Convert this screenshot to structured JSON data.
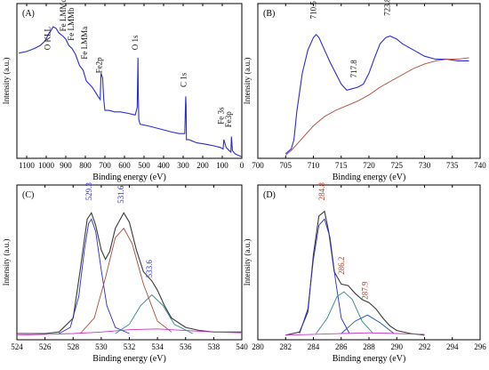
{
  "chart_data": [
    {
      "type": "line",
      "panel_label": "(A)",
      "xlabel": "Binding energy (eV)",
      "ylabel": "Intensity (a.u.)",
      "xlim": [
        1150,
        0
      ],
      "x_reversed": true,
      "xticks": [
        1100,
        1000,
        900,
        800,
        700,
        600,
        500,
        400,
        300,
        200,
        100,
        0
      ],
      "ylim": [
        0,
        100
      ],
      "y_tick_labels_shown": false,
      "series": [
        {
          "color": "#2b2bd6",
          "x": [
            1140,
            1100,
            1060,
            1030,
            1005,
            990,
            978,
            965,
            950,
            935,
            915,
            900,
            885,
            868,
            850,
            830,
            812,
            795,
            780,
            765,
            750,
            735,
            724,
            720,
            712,
            706,
            700,
            680,
            650,
            620,
            580,
            545,
            535,
            531,
            529,
            527,
            520,
            480,
            420,
            360,
            320,
            292,
            287,
            285,
            283,
            270,
            230,
            180,
            140,
            110,
            96,
            92,
            80,
            65,
            56,
            53,
            48,
            35,
            20,
            0
          ],
          "y": [
            68,
            69,
            71,
            73,
            76,
            80,
            82,
            85,
            84,
            81,
            79,
            77,
            73,
            71,
            67,
            60,
            57,
            50,
            48,
            46,
            43,
            40,
            38,
            55,
            52,
            38,
            31,
            31,
            30,
            30,
            29,
            28,
            33,
            65,
            40,
            25,
            22,
            21,
            19,
            17,
            16,
            16,
            40,
            34,
            12,
            12,
            10,
            9,
            8,
            7,
            6,
            12,
            7,
            5,
            4,
            14,
            5,
            3,
            2,
            1
          ]
        }
      ],
      "annotations": [
        {
          "text": "O KLL",
          "x": 980
        },
        {
          "text": "Fe LMMc",
          "x": 900
        },
        {
          "text": "Fe LMMb",
          "x": 860
        },
        {
          "text": "Fe LMMa",
          "x": 790
        },
        {
          "text": "Fe2p",
          "x": 715
        },
        {
          "text": "O 1s",
          "x": 531
        },
        {
          "text": "C 1s",
          "x": 285
        },
        {
          "text": "Fe 3s",
          "x": 93
        },
        {
          "text": "Fe3p",
          "x": 55
        }
      ]
    },
    {
      "type": "line",
      "panel_label": "(B)",
      "xlabel": "Binding energy (eV)",
      "ylabel": "Intensity (a.u.)",
      "xlim": [
        700,
        740
      ],
      "xticks": [
        700,
        705,
        710,
        715,
        720,
        725,
        730,
        735,
        740
      ],
      "ylim": [
        0,
        100
      ],
      "y_tick_labels_shown": false,
      "series": [
        {
          "color": "#2b2bd6",
          "x": [
            705,
            706,
            706.5,
            707,
            708,
            709,
            710,
            710.5,
            711,
            712,
            713,
            714,
            715,
            716,
            717,
            718,
            719,
            720,
            721,
            722,
            723,
            723.8,
            725,
            726,
            728,
            730,
            732,
            734,
            736,
            738
          ],
          "y": [
            3,
            6,
            12,
            30,
            55,
            70,
            78,
            80,
            78,
            70,
            62,
            55,
            48,
            44,
            45,
            46,
            48,
            55,
            65,
            74,
            78,
            79,
            77,
            74,
            70,
            66,
            64,
            64,
            63,
            63
          ]
        },
        {
          "color": "#b04a3a",
          "x": [
            705,
            706,
            707,
            708,
            709,
            710,
            712,
            714,
            716,
            718,
            720,
            722,
            724,
            726,
            728,
            730,
            732,
            734,
            736,
            738
          ],
          "y": [
            2,
            5,
            9,
            13,
            17,
            21,
            27,
            31,
            34,
            37,
            41,
            46,
            50,
            54,
            58,
            61,
            63,
            64,
            64,
            65
          ]
        }
      ],
      "annotations": [
        {
          "text": "710.5",
          "x": 710.5
        },
        {
          "text": "717.8",
          "x": 717.8
        },
        {
          "text": "723.8",
          "x": 723.8
        }
      ]
    },
    {
      "type": "line",
      "panel_label": "(C)",
      "xlabel": "Binding energy (eV)",
      "ylabel": "Intensity (a.u.)",
      "xlim": [
        524,
        540
      ],
      "xticks": [
        524,
        526,
        528,
        530,
        532,
        534,
        536,
        538,
        540
      ],
      "ylim": [
        0,
        100
      ],
      "y_tick_labels_shown": false,
      "series": [
        {
          "color": "#3a3a3a",
          "x": [
            524,
            526,
            527,
            528,
            528.5,
            529,
            529.3,
            529.6,
            530,
            530.3,
            530.6,
            531,
            531.6,
            532,
            532.5,
            533,
            533.6,
            534,
            534.5,
            535,
            536,
            537,
            538,
            539,
            540
          ],
          "y": [
            4,
            4,
            5,
            14,
            45,
            78,
            82,
            74,
            58,
            52,
            57,
            72,
            82,
            76,
            58,
            44,
            38,
            32,
            22,
            14,
            8,
            6,
            5,
            5,
            5
          ]
        },
        {
          "color": "#2b2bd6",
          "x": [
            527,
            527.8,
            528.4,
            528.8,
            529.1,
            529.3,
            529.6,
            530,
            530.4,
            531,
            532
          ],
          "y": [
            4,
            8,
            28,
            58,
            75,
            78,
            70,
            45,
            22,
            8,
            4
          ]
        },
        {
          "color": "#b04a3a",
          "x": [
            528.5,
            529.5,
            530.3,
            531,
            531.6,
            532.2,
            533,
            534,
            535
          ],
          "y": [
            4,
            14,
            40,
            66,
            72,
            62,
            36,
            12,
            5
          ]
        },
        {
          "color": "#2e8a8a",
          "x": [
            531,
            532,
            532.8,
            533.6,
            534.4,
            535.2,
            536.5
          ],
          "y": [
            4,
            10,
            22,
            29,
            22,
            10,
            4
          ]
        },
        {
          "color": "#c837c8",
          "x": [
            524,
            526,
            528,
            530,
            532,
            534,
            536,
            538,
            540
          ],
          "y": [
            3,
            3.5,
            4,
            5,
            6.5,
            7,
            6,
            5,
            4.5
          ]
        }
      ],
      "annotations": [
        {
          "text": "529.3",
          "x": 529.3
        },
        {
          "text": "531.6",
          "x": 531.6
        },
        {
          "text": "533.6",
          "x": 533.6
        }
      ]
    },
    {
      "type": "line",
      "panel_label": "(D)",
      "xlabel": "Binding energy (eV)",
      "ylabel": "Intensity (a.u.)",
      "xlim": [
        280,
        296
      ],
      "xticks": [
        280,
        282,
        284,
        286,
        288,
        290,
        292,
        294,
        296
      ],
      "ylim": [
        0,
        100
      ],
      "y_tick_labels_shown": false,
      "series": [
        {
          "color": "#3a3a3a",
          "x": [
            282,
            283,
            283.6,
            284,
            284.4,
            284.8,
            285.1,
            285.5,
            286,
            286.5,
            287,
            287.5,
            288,
            288.5,
            289,
            289.5,
            290,
            291,
            292
          ],
          "y": [
            3,
            5,
            18,
            55,
            80,
            83,
            70,
            44,
            36,
            35,
            30,
            26,
            24,
            20,
            14,
            9,
            6,
            4,
            3
          ]
        },
        {
          "color": "#2b2bd6",
          "x": [
            283,
            283.6,
            284,
            284.4,
            284.8,
            285.2,
            285.6,
            286,
            286.6
          ],
          "y": [
            4,
            20,
            52,
            74,
            78,
            66,
            38,
            14,
            4
          ]
        },
        {
          "color": "#2e8a8a",
          "x": [
            284.2,
            285,
            285.7,
            286.2,
            286.8,
            287.5,
            288.3
          ],
          "y": [
            4,
            14,
            28,
            31,
            26,
            12,
            4
          ]
        },
        {
          "color": "#1a56a8",
          "x": [
            286,
            287,
            287.9,
            288.8,
            289.8
          ],
          "y": [
            4,
            12,
            16,
            11,
            4
          ]
        },
        {
          "color": "#c837c8",
          "x": [
            282,
            284,
            286,
            288,
            290,
            292
          ],
          "y": [
            3,
            3.5,
            4,
            4.5,
            4,
            3.5
          ]
        }
      ],
      "annotations": [
        {
          "text": "284.8",
          "x": 284.8
        },
        {
          "text": "286.2",
          "x": 286.2
        },
        {
          "text": "287.9",
          "x": 287.9
        }
      ]
    }
  ]
}
